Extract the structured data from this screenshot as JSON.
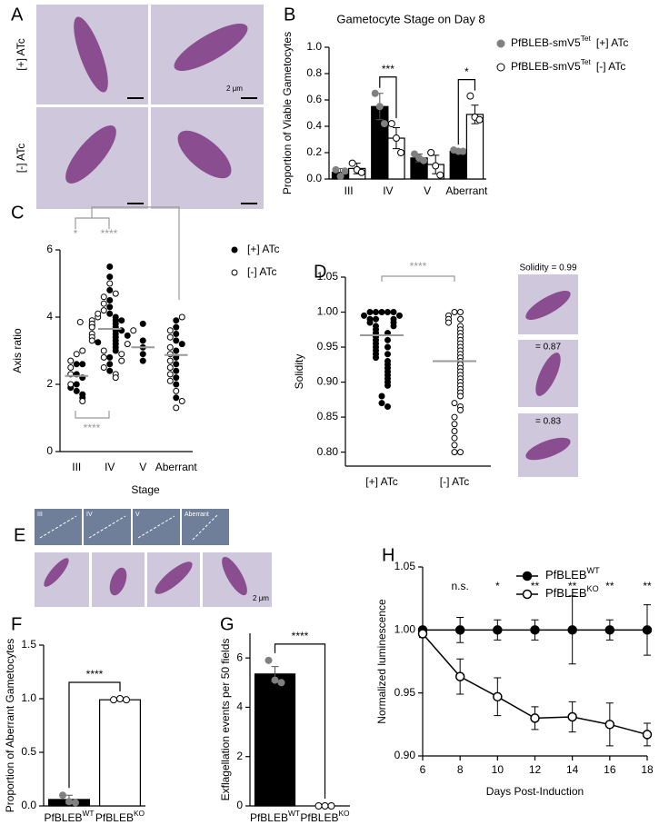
{
  "figure": {
    "letters": [
      "A",
      "B",
      "C",
      "D",
      "E",
      "F",
      "G",
      "H"
    ],
    "panel_a": {
      "row_labels": [
        "[+] ATc",
        "[-] ATc"
      ],
      "scale_bar": "2 μm"
    },
    "stage_images": [
      "III",
      "IV",
      "V",
      "Aberrant"
    ],
    "solidity_images": [
      "Solidity = 0.99",
      "= 0.87",
      "= 0.83"
    ],
    "panel_e": {
      "scale_bar": "2 μm"
    }
  },
  "chart_data": [
    {
      "type": "bar",
      "title": "Gametocyte Stage on Day 8",
      "ylabel": "Proportion of  Viable Gametocytes",
      "categories": [
        "III",
        "IV",
        "V",
        "Aberrant"
      ],
      "series": [
        {
          "name": "PfBLEB-smV5",
          "superscript": "Tet",
          "suffix": "[+] ATc",
          "color": "#000000",
          "point_color": "#808080",
          "values": [
            0.05,
            0.55,
            0.16,
            0.21
          ],
          "errors": [
            0.03,
            0.1,
            0.03,
            0.01
          ],
          "points": [
            [
              0.07,
              0.02,
              0.06
            ],
            [
              0.65,
              0.55,
              0.42
            ],
            [
              0.19,
              0.16,
              0.14
            ],
            [
              0.22,
              0.21,
              0.21
            ]
          ]
        },
        {
          "name": "PfBLEB-smV5",
          "superscript": "Tet",
          "suffix": "[-] ATc",
          "color": "#ffffff",
          "point_color": "#ffffff",
          "values": [
            0.08,
            0.31,
            0.11,
            0.49
          ],
          "errors": [
            0.04,
            0.08,
            0.07,
            0.07
          ],
          "points": [
            [
              0.12,
              0.07,
              0.05
            ],
            [
              0.42,
              0.31,
              0.2
            ],
            [
              0.2,
              0.1,
              0.03
            ],
            [
              0.63,
              0.47,
              0.45
            ]
          ]
        }
      ],
      "ylim": [
        0,
        1
      ],
      "yticks": [
        {
          "value": 0,
          "label": "0.0"
        },
        0.2,
        0.4,
        0.6,
        0.8,
        {
          "value": 1,
          "label": "1.0"
        }
      ],
      "annotations": [
        "***",
        "*"
      ]
    },
    {
      "type": "strip",
      "ylabel": "Axis ratio",
      "xlabel": "Stage",
      "categories": [
        "III",
        "IV",
        "V",
        "Aberrant"
      ],
      "series": [
        {
          "name": "[+] ATc",
          "marker_fill": "#000000",
          "values": [
            [
              2.0,
              2.3,
              1.8,
              2.6,
              1.9,
              2.2,
              1.7,
              2.6,
              1.6
            ],
            [
              5.5,
              5.2,
              4.8,
              4.5,
              4.3,
              4.1,
              4.0,
              3.9,
              3.8,
              3.7,
              3.6,
              3.5,
              3.4,
              3.3,
              3.2,
              3.1,
              3.0,
              2.8,
              2.6,
              2.4,
              3.6,
              3.9,
              3.75,
              3.45,
              3.25
            ],
            [
              3.8,
              3.3,
              3.1,
              2.9,
              2.7
            ],
            [
              3.9,
              3.7,
              3.5,
              3.3,
              3.2,
              3.0,
              2.8,
              2.6,
              2.4,
              2.2,
              2.0,
              1.6
            ]
          ]
        },
        {
          "name": "[-] ATc",
          "marker_fill": "#ffffff",
          "values": [
            [
              2.9,
              3.0,
              2.7,
              2.5,
              1.5,
              2.3,
              2.0
            ],
            [
              5.0,
              4.7,
              4.6,
              4.4,
              4.2,
              4.0,
              3.9,
              3.8,
              3.7,
              3.6,
              3.5,
              3.4,
              3.3,
              3.2,
              3.0,
              2.9,
              2.8,
              2.7,
              2.5,
              2.3,
              2.2,
              4.1,
              3.85
            ],
            [],
            [
              4.0,
              3.6,
              3.4,
              3.1,
              2.9,
              2.7,
              2.5,
              2.3,
              2.1,
              1.8,
              1.5,
              1.3
            ]
          ]
        }
      ],
      "medians": [
        2.25,
        3.65,
        3.1,
        2.87
      ],
      "ylim": [
        0,
        6
      ],
      "yticks": [
        0,
        2,
        4,
        6
      ],
      "annotations": [
        "*",
        "****",
        "****"
      ]
    },
    {
      "type": "strip",
      "ylabel": "Solidity",
      "categories": [
        "[+] ATc",
        "[-] ATc"
      ],
      "marker_fills": [
        "#000000",
        "#ffffff"
      ],
      "values": [
        [
          1.0,
          1.0,
          1.0,
          1.0,
          1.0,
          0.995,
          0.995,
          0.99,
          0.99,
          0.99,
          0.985,
          0.985,
          0.98,
          0.98,
          0.975,
          0.97,
          0.97,
          0.965,
          0.96,
          0.96,
          0.955,
          0.95,
          0.95,
          0.945,
          0.94,
          0.94,
          0.935,
          0.93,
          0.925,
          0.92,
          0.915,
          0.91,
          0.905,
          0.9,
          0.895,
          0.88,
          0.87,
          0.865
        ],
        [
          1.0,
          1.0,
          0.995,
          0.99,
          0.99,
          0.985,
          0.98,
          0.975,
          0.97,
          0.965,
          0.96,
          0.955,
          0.95,
          0.945,
          0.94,
          0.935,
          0.93,
          0.925,
          0.92,
          0.915,
          0.91,
          0.905,
          0.9,
          0.895,
          0.89,
          0.885,
          0.88,
          0.87,
          0.865,
          0.86,
          0.85,
          0.84,
          0.83,
          0.82,
          0.81,
          0.8,
          0.8
        ]
      ],
      "means": [
        0.967,
        0.93
      ],
      "ylim": [
        0.78,
        1.05
      ],
      "yticks": [
        {
          "value": 0.8,
          "label": "0.80"
        },
        0.85,
        {
          "value": 0.9,
          "label": "0.90"
        },
        0.95,
        {
          "value": 1,
          "label": "1.00"
        },
        1.05
      ],
      "annotations": [
        "****"
      ]
    },
    {
      "type": "bar",
      "ylabel": "Proportion of Aberrant Gametocytes",
      "categories": [
        "PfBLEB",
        "PfBLEB"
      ],
      "category_superscripts": [
        "WT",
        "KO"
      ],
      "colors": [
        "#000000",
        "#ffffff"
      ],
      "point_colors": [
        "#808080",
        "#ffffff"
      ],
      "values": [
        0.06,
        0.99
      ],
      "errors": [
        0.04,
        0.01
      ],
      "points": [
        [
          0.1,
          0.04,
          0.03
        ],
        [
          0.99,
          1.0,
          0.99
        ]
      ],
      "ylim": [
        0,
        1.5
      ],
      "yticks": [
        {
          "value": 0,
          "label": "0.0"
        },
        0.5,
        {
          "value": 1,
          "label": "1.0"
        },
        1.5
      ],
      "annotations": [
        "****"
      ]
    },
    {
      "type": "bar",
      "ylabel": "Exflagellation events per 50 fields",
      "categories": [
        "PfBLEB",
        "PfBLEB"
      ],
      "category_superscripts": [
        "WT",
        "KO"
      ],
      "colors": [
        "#000000",
        "#ffffff"
      ],
      "point_colors": [
        "#808080",
        "#ffffff"
      ],
      "values": [
        5.35,
        0
      ],
      "errors": [
        0.3,
        0
      ],
      "points": [
        [
          5.9,
          5.1,
          5.0
        ],
        [
          0,
          0,
          0
        ]
      ],
      "ylim": [
        0,
        7
      ],
      "yticks": [
        0,
        2,
        4,
        6
      ],
      "annotations": [
        "****"
      ]
    },
    {
      "type": "line",
      "ylabel": "Normalized luminescence",
      "xlabel": "Days Post-Induction",
      "x": [
        6,
        8,
        10,
        12,
        14,
        16,
        18
      ],
      "series": [
        {
          "name": "PfBLEB",
          "superscript": "WT",
          "color": "#000000",
          "marker_fill": "#000000",
          "values": [
            1.0,
            1.0,
            1.0,
            1.0,
            1.0,
            1.0,
            1.0
          ],
          "errors": [
            0,
            0.01,
            0.008,
            0.008,
            0.027,
            0.008,
            0.02
          ]
        },
        {
          "name": "PfBLEB",
          "superscript": "KO",
          "color": "#000000",
          "marker_fill": "#ffffff",
          "values": [
            0.997,
            0.963,
            0.947,
            0.93,
            0.931,
            0.925,
            0.917
          ],
          "errors": [
            0.003,
            0.014,
            0.015,
            0.009,
            0.012,
            0.017,
            0.009
          ]
        }
      ],
      "xlim": [
        6,
        18
      ],
      "xticks": [
        6,
        8,
        10,
        12,
        14,
        16,
        18
      ],
      "ylim": [
        0.9,
        1.05
      ],
      "yticks": [
        {
          "value": 0.9,
          "label": "0.90"
        },
        0.95,
        {
          "value": 1,
          "label": "1.00"
        },
        1.05
      ],
      "annotations": [
        null,
        "n.s.",
        "*",
        "**",
        "**",
        "**",
        "**"
      ]
    }
  ]
}
